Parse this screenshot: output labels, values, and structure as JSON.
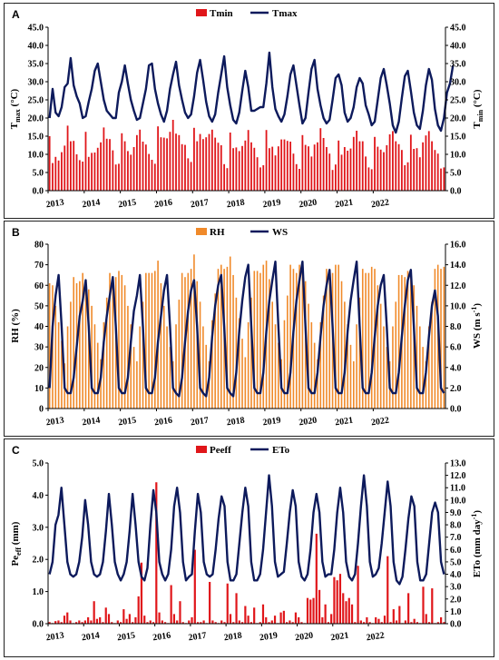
{
  "colors": {
    "tmin": "#e0161a",
    "tmax": "#0d1a5c",
    "rh": "#f08a2a",
    "ws": "#0d1a5c",
    "peeff": "#e0161a",
    "eto": "#0d1a5c"
  },
  "chart_data": [
    {
      "panel_label": "A",
      "type": "bar+line",
      "x_tick_labels": [
        "2013",
        "2014",
        "2015",
        "2016",
        "2017",
        "2018",
        "2019",
        "2020",
        "2021",
        "2022"
      ],
      "left_axis": {
        "label_main": "T",
        "label_sub": "max",
        "label_unit": " (°C)",
        "ylim": [
          0,
          45
        ],
        "ticks": [
          "0.0",
          "5.0",
          "10.0",
          "15.0",
          "20.0",
          "25.0",
          "30.0",
          "35.0",
          "40.0",
          "45.0"
        ]
      },
      "right_axis": {
        "label_main": "T",
        "label_sub": "min",
        "label_unit": " (°C)",
        "ylim": [
          0,
          45
        ],
        "ticks": [
          "0.0",
          "5.0",
          "10.0",
          "15.0",
          "20.0",
          "25.0",
          "30.0",
          "35.0",
          "40.0",
          "45.0"
        ]
      },
      "bar_series": {
        "name": "Tmin",
        "axis": "right",
        "values": [
          15.0,
          7.6,
          9.3,
          8.3,
          10.6,
          12.4,
          17.9,
          13.6,
          13.7,
          10.0,
          8.4,
          8.0,
          16.2,
          9.3,
          10.4,
          10.5,
          11.8,
          13.3,
          17.4,
          14.3,
          14.2,
          11.1,
          7.2,
          7.4,
          15.8,
          13.6,
          10.9,
          9.9,
          12.0,
          15.3,
          16.8,
          13.5,
          12.7,
          10.1,
          8.5,
          7.4,
          17.7,
          14.7,
          14.6,
          14.4,
          16.2,
          19.5,
          15.7,
          15.3,
          12.8,
          12.6,
          8.9,
          7.9,
          17.3,
          13.6,
          15.6,
          14.2,
          14.7,
          15.6,
          16.8,
          14.6,
          13.2,
          12.5,
          7.3,
          6.2,
          16.0,
          11.7,
          11.9,
          10.9,
          12.3,
          13.8,
          16.7,
          13.3,
          11.8,
          9.2,
          6.4,
          7.0,
          16.7,
          11.7,
          12.1,
          9.7,
          12.2,
          14.1,
          14.1,
          13.7,
          13.5,
          10.2,
          7.3,
          6.0,
          15.3,
          12.6,
          12.2,
          9.4,
          12.7,
          13.3,
          17.2,
          14.5,
          12.0,
          10.2,
          5.7,
          7.2,
          13.8,
          9.9,
          12.0,
          11.0,
          11.6,
          14.8,
          16.5,
          13.6,
          13.6,
          9.4,
          6.4,
          5.9,
          14.8,
          12.1,
          11.3,
          10.6,
          12.5,
          15.5,
          16.4,
          13.6,
          12.8,
          11.2,
          7.0,
          7.8,
          15.4,
          11.5,
          11.7,
          9.2,
          13.3,
          15.2,
          16.4,
          13.6,
          11.2,
          10.2,
          6.1,
          6.4
        ]
      },
      "line_series": {
        "name": "Tmax",
        "axis": "left",
        "values": [
          20.0,
          28.0,
          21.5,
          20.5,
          23.0,
          28.5,
          29.5,
          36.5,
          29.0,
          26.0,
          24.0,
          20.0,
          20.5,
          24.5,
          28.0,
          33.0,
          35.0,
          30.0,
          25.0,
          22.0,
          21.0,
          20.0,
          20.0,
          27.0,
          30.0,
          34.5,
          29.5,
          25.0,
          22.0,
          19.5,
          20.0,
          24.0,
          28.0,
          34.5,
          35.0,
          28.0,
          24.0,
          21.0,
          19.0,
          22.0,
          28.0,
          32.0,
          35.5,
          29.0,
          25.0,
          21.5,
          20.0,
          21.0,
          26.0,
          32.5,
          36.0,
          30.5,
          24.5,
          20.5,
          19.0,
          21.0,
          27.0,
          32.0,
          37.0,
          28.5,
          23.5,
          19.5,
          18.5,
          21.5,
          27.5,
          33.0,
          28.5,
          22.0,
          22.0,
          22.5,
          23.0,
          23.0,
          29.5,
          38.0,
          28.5,
          22.5,
          20.5,
          19.0,
          21.0,
          26.0,
          32.0,
          34.5,
          29.0,
          23.5,
          18.5,
          20.0,
          27.0,
          33.5,
          36.0,
          28.0,
          23.5,
          20.0,
          18.5,
          19.5,
          25.0,
          31.0,
          32.0,
          29.0,
          21.5,
          19.0,
          20.0,
          23.0,
          28.5,
          31.0,
          29.5,
          23.5,
          21.0,
          18.0,
          19.0,
          25.0,
          31.0,
          33.5,
          29.0,
          24.0,
          18.0,
          16.0,
          19.0,
          25.5,
          31.5,
          33.0,
          27.5,
          21.5,
          18.0,
          17.0,
          22.0,
          29.0,
          33.5,
          30.5,
          22.5,
          18.0,
          16.5,
          20.0,
          27.0,
          29.5,
          34.5
        ]
      },
      "legend": [
        "Tmin",
        "Tmax"
      ]
    },
    {
      "panel_label": "B",
      "type": "bar+line",
      "x_tick_labels": [
        "2013",
        "2014",
        "2015",
        "2016",
        "2017",
        "2018",
        "2019",
        "2020",
        "2021",
        "2022"
      ],
      "left_axis": {
        "label_main": "RH (%)",
        "ylim": [
          0,
          80
        ],
        "ticks": [
          "0",
          "10",
          "20",
          "30",
          "40",
          "50",
          "60",
          "70",
          "80"
        ]
      },
      "right_axis": {
        "label_main": "WS (m s",
        "label_sup": "-1",
        "label_unit": ")",
        "ylim": [
          0,
          16
        ],
        "ticks": [
          "0.0",
          "2.0",
          "4.0",
          "6.0",
          "8.0",
          "10.0",
          "12.0",
          "14.0",
          "16.0"
        ]
      },
      "bar_series": {
        "name": "RH",
        "axis": "left",
        "values": [
          61,
          60,
          50,
          42,
          33,
          22,
          40,
          52,
          64,
          61,
          62,
          66,
          62,
          58,
          50,
          41,
          32,
          24,
          42,
          54,
          66,
          62,
          64,
          67,
          65,
          60,
          50,
          41,
          30,
          23,
          40,
          52,
          66,
          66,
          66,
          67,
          72,
          61,
          50,
          40,
          30,
          23,
          41,
          53,
          66,
          64,
          66,
          68,
          75,
          62,
          52,
          40,
          31,
          23,
          43,
          56,
          68,
          70,
          68,
          69,
          74,
          65,
          54,
          44,
          34,
          25,
          42,
          54,
          67,
          67,
          66,
          70,
          72,
          63,
          52,
          41,
          32,
          24,
          43,
          55,
          70,
          68,
          66,
          70,
          67,
          62,
          51,
          42,
          32,
          24,
          42,
          55,
          68,
          68,
          66,
          70,
          70,
          62,
          52,
          41,
          31,
          23,
          41,
          54,
          68,
          66,
          66,
          69,
          68,
          60,
          51,
          40,
          30,
          23,
          40,
          52,
          65,
          65,
          64,
          67,
          66,
          60,
          50,
          40,
          30,
          23,
          40,
          52,
          68,
          70,
          68,
          69
        ]
      },
      "line_series": {
        "name": "WS",
        "axis": "right",
        "values": [
          2.0,
          8.0,
          11.0,
          13.0,
          8.0,
          2.0,
          1.5,
          1.5,
          3.0,
          6.0,
          9.0,
          10.5,
          12.5,
          8.0,
          2.0,
          1.5,
          1.5,
          3.0,
          6.5,
          9.0,
          11.0,
          12.8,
          8.0,
          2.0,
          1.5,
          1.5,
          3.0,
          6.5,
          9.5,
          11.0,
          13.0,
          8.0,
          2.0,
          1.5,
          1.5,
          3.0,
          6.5,
          9.0,
          11.5,
          13.0,
          8.0,
          2.0,
          1.5,
          1.2,
          3.0,
          6.5,
          9.5,
          11.5,
          12.5,
          8.0,
          2.0,
          1.5,
          1.2,
          3.0,
          7.0,
          10.0,
          12.0,
          13.0,
          8.0,
          2.0,
          1.5,
          1.2,
          3.5,
          7.5,
          10.5,
          12.8,
          14.0,
          8.0,
          2.0,
          1.5,
          1.5,
          3.5,
          7.5,
          10.5,
          12.5,
          14.3,
          8.0,
          2.0,
          1.5,
          1.5,
          3.5,
          7.5,
          10.5,
          12.5,
          14.3,
          8.0,
          2.0,
          1.5,
          1.5,
          3.5,
          7.0,
          10.0,
          12.0,
          13.5,
          8.0,
          2.0,
          1.5,
          1.5,
          3.5,
          7.5,
          10.5,
          12.5,
          14.3,
          8.0,
          2.0,
          1.5,
          1.5,
          3.5,
          7.0,
          10.0,
          12.0,
          13.0,
          8.0,
          2.0,
          1.5,
          1.5,
          3.5,
          7.0,
          10.0,
          12.5,
          13.5,
          8.0,
          2.0,
          1.5,
          1.5,
          3.5,
          7.0,
          10.0,
          11.5,
          9.0,
          2.0,
          1.5
        ]
      },
      "legend": [
        "RH",
        "WS"
      ]
    },
    {
      "panel_label": "C",
      "type": "bar+line",
      "x_tick_labels": [
        "2013",
        "2014",
        "2015",
        "2016",
        "2017",
        "2018",
        "2019",
        "2020",
        "2021",
        "2022"
      ],
      "left_axis": {
        "label_main": "Pe",
        "label_sub": "eff",
        "label_unit": " (mm)",
        "ylim": [
          0,
          5.0
        ],
        "ticks": [
          "0.0",
          "1.0",
          "2.0",
          "3.0",
          "4.0",
          "5.0"
        ]
      },
      "right_axis": {
        "label_main": "ETo (mm day",
        "label_sup": "-1",
        "label_unit": ")",
        "ylim": [
          0,
          13.0
        ],
        "ticks": [
          "0.0",
          "1.0",
          "2.0",
          "3.0",
          "4.0",
          "5.0",
          "6.0",
          "7.0",
          "8.0",
          "9.0",
          "10.0",
          "11.0",
          "12.0",
          "13.0"
        ]
      },
      "bar_series": {
        "name": "Peeff",
        "axis": "left",
        "values": [
          0.05,
          0.02,
          0.08,
          0.1,
          0.05,
          0.25,
          0.35,
          0.1,
          0.02,
          0.05,
          0.1,
          0.05,
          0.1,
          0.2,
          0.1,
          0.7,
          0.15,
          0.2,
          0.05,
          0.5,
          0.3,
          0.05,
          0.02,
          0.1,
          0.05,
          0.45,
          0.15,
          0.3,
          0.05,
          0.2,
          0.85,
          1.9,
          0.25,
          0.05,
          0.1,
          0.05,
          4.4,
          0.35,
          0.1,
          0.05,
          0.02,
          1.2,
          0.3,
          0.1,
          0.7,
          0.05,
          0.02,
          0.1,
          0.2,
          2.3,
          0.05,
          0.05,
          0.1,
          0.02,
          1.3,
          0.1,
          0.05,
          0.02,
          0.1,
          0.05,
          1.25,
          0.3,
          0.05,
          0.95,
          0.1,
          0.05,
          0.55,
          0.25,
          0.05,
          0.5,
          0.02,
          0.05,
          0.6,
          0.2,
          0.05,
          0.1,
          0.25,
          0.02,
          0.35,
          0.4,
          0.05,
          0.1,
          0.05,
          0.35,
          0.2,
          0.05,
          0.02,
          0.8,
          0.75,
          0.8,
          2.8,
          1.05,
          0.2,
          0.6,
          0.05,
          0.3,
          1.45,
          1.35,
          1.55,
          0.95,
          0.7,
          0.8,
          0.6,
          0.05,
          1.8,
          0.1,
          0.05,
          0.2,
          0.05,
          0.02,
          0.2,
          0.15,
          0.05,
          0.25,
          2.1,
          0.05,
          0.45,
          0.1,
          0.55,
          0.02,
          0.1,
          0.95,
          0.05,
          0.15,
          0.05,
          0.02,
          1.15,
          0.3,
          0.05,
          1.1,
          0.02,
          0.05,
          0.2,
          0.05
        ]
      },
      "line_series": {
        "name": "ETo",
        "axis": "right",
        "values": [
          4.0,
          5.0,
          8.0,
          8.8,
          11.0,
          8.0,
          5.0,
          4.0,
          3.8,
          4.0,
          5.0,
          7.0,
          10.0,
          8.0,
          5.0,
          4.0,
          3.8,
          4.0,
          5.0,
          7.5,
          10.5,
          8.0,
          5.0,
          4.0,
          3.5,
          4.0,
          5.0,
          7.5,
          10.5,
          8.0,
          5.0,
          3.8,
          3.5,
          4.5,
          8.0,
          10.8,
          9.0,
          5.0,
          4.0,
          3.5,
          4.0,
          6.0,
          9.5,
          11.0,
          9.0,
          5.0,
          3.5,
          3.8,
          4.0,
          7.5,
          10.5,
          9.0,
          5.0,
          4.0,
          3.8,
          4.0,
          6.0,
          8.5,
          10.3,
          9.5,
          5.0,
          3.5,
          3.5,
          4.0,
          6.5,
          9.0,
          11.0,
          9.5,
          5.0,
          3.5,
          3.5,
          4.0,
          6.0,
          9.0,
          12.0,
          9.5,
          5.0,
          3.8,
          4.0,
          4.2,
          6.5,
          9.0,
          10.8,
          9.5,
          5.0,
          3.8,
          3.5,
          4.0,
          6.0,
          9.0,
          10.5,
          9.0,
          5.0,
          3.8,
          4.0,
          4.0,
          6.0,
          9.0,
          11.0,
          9.0,
          5.0,
          3.8,
          3.5,
          4.0,
          6.5,
          9.5,
          12.0,
          9.5,
          5.0,
          3.8,
          4.0,
          4.5,
          6.5,
          9.0,
          11.5,
          9.5,
          5.0,
          3.5,
          3.2,
          3.8,
          6.0,
          8.5,
          10.3,
          9.5,
          5.0,
          3.5,
          3.5,
          4.0,
          6.5,
          9.0,
          9.8,
          9.0,
          5.0,
          4.0
        ]
      },
      "legend": [
        "Peeff",
        "ETo"
      ]
    }
  ]
}
